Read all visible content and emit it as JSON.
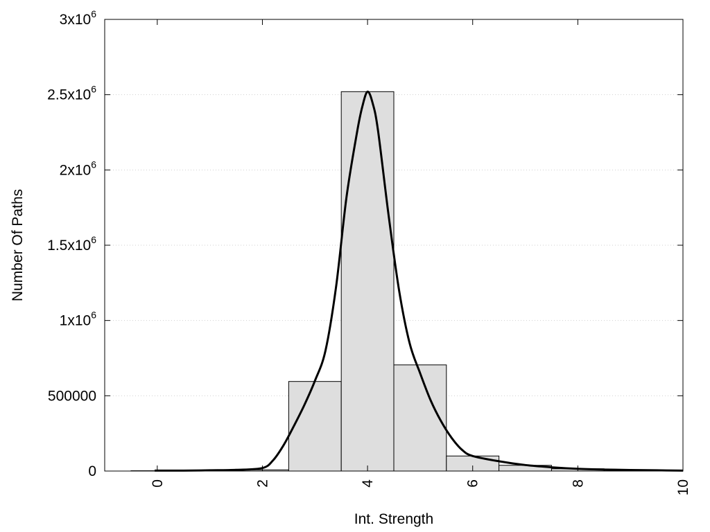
{
  "chart_data": {
    "type": "bar",
    "title": "",
    "xlabel": "Int. Strength",
    "ylabel": "Number Of Paths",
    "xlim": [
      -1,
      10
    ],
    "ylim": [
      0,
      3000000
    ],
    "x_ticks": [
      {
        "value": 0,
        "label": "0"
      },
      {
        "value": 2,
        "label": "2"
      },
      {
        "value": 4,
        "label": "4"
      },
      {
        "value": 6,
        "label": "6"
      },
      {
        "value": 8,
        "label": "8"
      },
      {
        "value": 10,
        "label": "10"
      }
    ],
    "y_ticks": [
      {
        "value": 0,
        "base": "0",
        "exp": ""
      },
      {
        "value": 500000,
        "base": "500000",
        "exp": ""
      },
      {
        "value": 1000000,
        "base": "1x10",
        "exp": "6"
      },
      {
        "value": 1500000,
        "base": "1.5x10",
        "exp": "6"
      },
      {
        "value": 2000000,
        "base": "2x10",
        "exp": "6"
      },
      {
        "value": 2500000,
        "base": "2.5x10",
        "exp": "6"
      },
      {
        "value": 3000000,
        "base": "3x10",
        "exp": "6"
      }
    ],
    "grid": "horizontal-dotted",
    "bin_width": 1,
    "bars": [
      {
        "x": 0,
        "value": 2000
      },
      {
        "x": 1,
        "value": 3000
      },
      {
        "x": 2,
        "value": 8000
      },
      {
        "x": 3,
        "value": 595000
      },
      {
        "x": 4,
        "value": 2520000
      },
      {
        "x": 5,
        "value": 705000
      },
      {
        "x": 6,
        "value": 100000
      },
      {
        "x": 7,
        "value": 38000
      },
      {
        "x": 8,
        "value": 15000
      },
      {
        "x": 9,
        "value": 6000
      },
      {
        "x": 10,
        "value": 3000
      }
    ],
    "curve": {
      "x": [
        -0.05,
        0.5,
        1.0,
        1.5,
        2.0,
        2.2,
        2.4,
        2.6,
        2.8,
        3.0,
        3.2,
        3.4,
        3.6,
        3.8,
        3.9,
        4.0,
        4.1,
        4.2,
        4.4,
        4.6,
        4.8,
        5.0,
        5.2,
        5.4,
        5.6,
        5.8,
        6.0,
        6.5,
        7.0,
        7.5,
        8.0,
        8.5,
        9.0,
        9.5,
        10.0
      ],
      "y": [
        3000,
        3000,
        5000,
        8000,
        20000,
        70000,
        170000,
        300000,
        440000,
        600000,
        800000,
        1220000,
        1820000,
        2250000,
        2420000,
        2520000,
        2440000,
        2260000,
        1700000,
        1200000,
        850000,
        650000,
        470000,
        330000,
        220000,
        140000,
        100000,
        65000,
        40000,
        25000,
        15000,
        10000,
        7000,
        5000,
        3000
      ]
    }
  }
}
